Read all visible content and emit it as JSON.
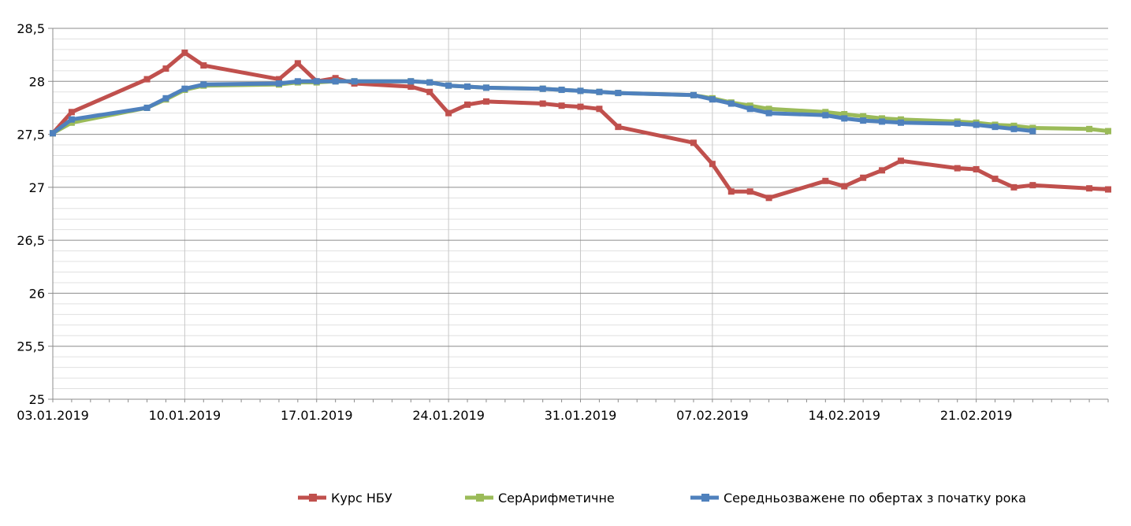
{
  "chart_data": {
    "type": "line",
    "title": "",
    "xlabel": "",
    "ylabel": "",
    "ylim": [
      25,
      28.5
    ],
    "y_major_ticks": [
      "25",
      "25,5",
      "26",
      "26,5",
      "27",
      "27,5",
      "28",
      "28,5"
    ],
    "y_major_values": [
      25,
      25.5,
      26,
      26.5,
      27,
      27.5,
      28,
      28.5
    ],
    "x_tick_labels": [
      "03.01.2019",
      "10.01.2019",
      "17.01.2019",
      "24.01.2019",
      "31.01.2019",
      "07.02.2019",
      "14.02.2019",
      "21.02.2019"
    ],
    "xlim": [
      "2019-01-03",
      "2019-02-28"
    ],
    "grid": true,
    "legend_position": "bottom",
    "series": [
      {
        "name": "Курс НБУ",
        "color": "#c0504d",
        "points": [
          [
            "2019-01-03",
            27.51
          ],
          [
            "2019-01-04",
            27.71
          ],
          [
            "2019-01-08",
            28.02
          ],
          [
            "2019-01-09",
            28.12
          ],
          [
            "2019-01-10",
            28.27
          ],
          [
            "2019-01-11",
            28.15
          ],
          [
            "2019-01-15",
            28.02
          ],
          [
            "2019-01-16",
            28.17
          ],
          [
            "2019-01-17",
            28.0
          ],
          [
            "2019-01-18",
            28.03
          ],
          [
            "2019-01-19",
            27.98
          ],
          [
            "2019-01-22",
            27.95
          ],
          [
            "2019-01-23",
            27.9
          ],
          [
            "2019-01-24",
            27.7
          ],
          [
            "2019-01-25",
            27.78
          ],
          [
            "2019-01-26",
            27.81
          ],
          [
            "2019-01-29",
            27.79
          ],
          [
            "2019-01-30",
            27.77
          ],
          [
            "2019-01-31",
            27.76
          ],
          [
            "2019-02-01",
            27.74
          ],
          [
            "2019-02-02",
            27.57
          ],
          [
            "2019-02-06",
            27.42
          ],
          [
            "2019-02-07",
            27.22
          ],
          [
            "2019-02-08",
            26.96
          ],
          [
            "2019-02-09",
            26.96
          ],
          [
            "2019-02-10",
            26.9
          ],
          [
            "2019-02-13",
            27.06
          ],
          [
            "2019-02-14",
            27.01
          ],
          [
            "2019-02-15",
            27.09
          ],
          [
            "2019-02-16",
            27.16
          ],
          [
            "2019-02-17",
            27.25
          ],
          [
            "2019-02-20",
            27.18
          ],
          [
            "2019-02-21",
            27.17
          ],
          [
            "2019-02-22",
            27.08
          ],
          [
            "2019-02-23",
            27.0
          ],
          [
            "2019-02-24",
            27.02
          ],
          [
            "2019-02-27",
            26.99
          ],
          [
            "2019-02-28",
            26.98
          ]
        ]
      },
      {
        "name": "СерАрифметичне",
        "color": "#9bbb59",
        "points": [
          [
            "2019-01-03",
            27.51
          ],
          [
            "2019-01-04",
            27.61
          ],
          [
            "2019-01-08",
            27.75
          ],
          [
            "2019-01-09",
            27.83
          ],
          [
            "2019-01-10",
            27.92
          ],
          [
            "2019-01-11",
            27.96
          ],
          [
            "2019-01-15",
            27.97
          ],
          [
            "2019-01-16",
            27.99
          ],
          [
            "2019-01-17",
            27.99
          ],
          [
            "2019-01-18",
            28.0
          ],
          [
            "2019-01-19",
            28.0
          ],
          [
            "2019-01-22",
            28.0
          ],
          [
            "2019-01-23",
            27.99
          ],
          [
            "2019-01-24",
            27.96
          ],
          [
            "2019-01-25",
            27.95
          ],
          [
            "2019-01-26",
            27.94
          ],
          [
            "2019-01-29",
            27.93
          ],
          [
            "2019-01-30",
            27.92
          ],
          [
            "2019-01-31",
            27.91
          ],
          [
            "2019-02-01",
            27.9
          ],
          [
            "2019-02-02",
            27.89
          ],
          [
            "2019-02-06",
            27.87
          ],
          [
            "2019-02-07",
            27.84
          ],
          [
            "2019-02-08",
            27.8
          ],
          [
            "2019-02-09",
            27.77
          ],
          [
            "2019-02-10",
            27.74
          ],
          [
            "2019-02-13",
            27.71
          ],
          [
            "2019-02-14",
            27.69
          ],
          [
            "2019-02-15",
            27.67
          ],
          [
            "2019-02-16",
            27.65
          ],
          [
            "2019-02-17",
            27.64
          ],
          [
            "2019-02-20",
            27.62
          ],
          [
            "2019-02-21",
            27.61
          ],
          [
            "2019-02-22",
            27.59
          ],
          [
            "2019-02-23",
            27.58
          ],
          [
            "2019-02-24",
            27.56
          ],
          [
            "2019-02-27",
            27.55
          ],
          [
            "2019-02-28",
            27.53
          ]
        ]
      },
      {
        "name": "Середньозважене по обертах з початку рока",
        "color": "#4f81bd",
        "points": [
          [
            "2019-01-03",
            27.51
          ],
          [
            "2019-01-04",
            27.64
          ],
          [
            "2019-01-08",
            27.75
          ],
          [
            "2019-01-09",
            27.84
          ],
          [
            "2019-01-10",
            27.93
          ],
          [
            "2019-01-11",
            27.97
          ],
          [
            "2019-01-15",
            27.98
          ],
          [
            "2019-01-16",
            28.0
          ],
          [
            "2019-01-17",
            28.0
          ],
          [
            "2019-01-18",
            28.0
          ],
          [
            "2019-01-19",
            28.0
          ],
          [
            "2019-01-22",
            28.0
          ],
          [
            "2019-01-23",
            27.99
          ],
          [
            "2019-01-24",
            27.96
          ],
          [
            "2019-01-25",
            27.95
          ],
          [
            "2019-01-26",
            27.94
          ],
          [
            "2019-01-29",
            27.93
          ],
          [
            "2019-01-30",
            27.92
          ],
          [
            "2019-01-31",
            27.91
          ],
          [
            "2019-02-01",
            27.9
          ],
          [
            "2019-02-02",
            27.89
          ],
          [
            "2019-02-06",
            27.87
          ],
          [
            "2019-02-07",
            27.83
          ],
          [
            "2019-02-08",
            27.79
          ],
          [
            "2019-02-09",
            27.74
          ],
          [
            "2019-02-10",
            27.7
          ],
          [
            "2019-02-13",
            27.68
          ],
          [
            "2019-02-14",
            27.65
          ],
          [
            "2019-02-15",
            27.63
          ],
          [
            "2019-02-16",
            27.62
          ],
          [
            "2019-02-17",
            27.61
          ],
          [
            "2019-02-20",
            27.6
          ],
          [
            "2019-02-21",
            27.59
          ],
          [
            "2019-02-22",
            27.57
          ],
          [
            "2019-02-23",
            27.55
          ],
          [
            "2019-02-24",
            27.53
          ]
        ]
      }
    ]
  }
}
